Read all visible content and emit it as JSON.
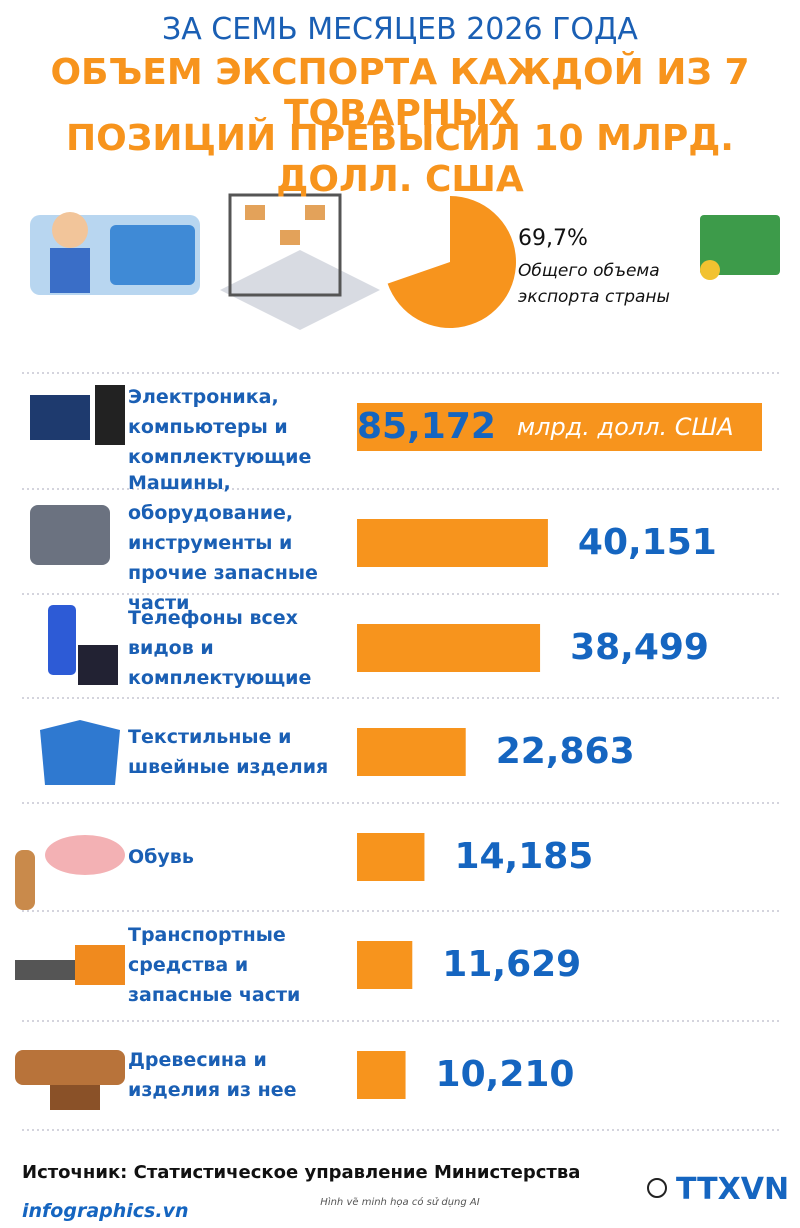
{
  "chart_data": {
    "type": "bar",
    "subtitle": "ЗА СЕМЬ МЕСЯЦЕВ 2026 ГОДА",
    "title": [
      "ОБЪЕМ ЭКСПОРТА КАЖДОЙ ИЗ 7 ТОВАРНЫХ",
      "ПОЗИЦИЙ ПРЕВЫСИЛ 10 МЛРД. ДОЛЛ. США"
    ],
    "share": {
      "value": 69.7,
      "label": "69,7%",
      "text": "Общего объема экспорта страны",
      "color": "#f7941d"
    },
    "unit": "млрд. долл. США",
    "categories": [
      "Электроника, компьютеры и комплектующие",
      "Машины, оборудование, инструменты и прочие запасные части",
      "Телефоны всех видов и комплектующие",
      "Текстильные и швейные изделия",
      "Обувь",
      "Транспортные средства и запасные части",
      "Древесина и изделия из нее"
    ],
    "values": [
      85.172,
      40.151,
      38.499,
      22.863,
      14.185,
      11.629,
      10.21
    ],
    "value_labels": [
      "85,172",
      "40,151",
      "38,499",
      "22,863",
      "14,185",
      "11,629",
      "10,210"
    ],
    "color": "#f7941d",
    "source": "Источник: Статистическое управление Министерства",
    "note": "Hình vẽ minh họa có sử dụng AI",
    "site": "infographics.vn",
    "logo": "TTXVN"
  }
}
